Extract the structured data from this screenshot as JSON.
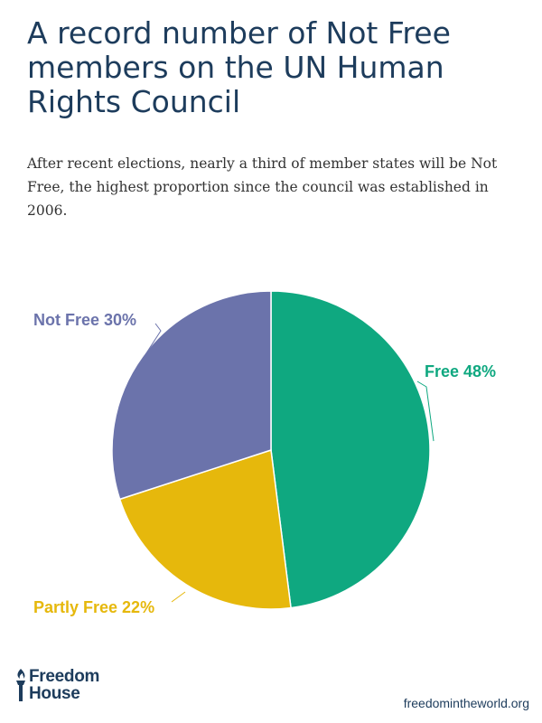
{
  "title": "A record number of Not Free members on the UN Human Rights Council",
  "subtitle": "After recent elections, nearly a third of member states will be Not Free, the highest proportion since the council was established in 2006.",
  "chart_data": {
    "type": "pie",
    "slices": [
      {
        "label": "Free 48%",
        "value": 48,
        "color": "#0fa880"
      },
      {
        "label": "Partly Free 22%",
        "value": 22,
        "color": "#e6b80c"
      },
      {
        "label": "Not Free 30%",
        "value": 30,
        "color": "#6b73ab"
      }
    ],
    "start": "12 o'clock",
    "direction": "clockwise"
  },
  "branding": {
    "logo_line1": "Freedom",
    "logo_line2": "House",
    "logo_icon": "torch-icon",
    "logo_color": "#1d3c5c",
    "url": "freedomintheworld.org",
    "url_color": "#1d3c5c"
  }
}
